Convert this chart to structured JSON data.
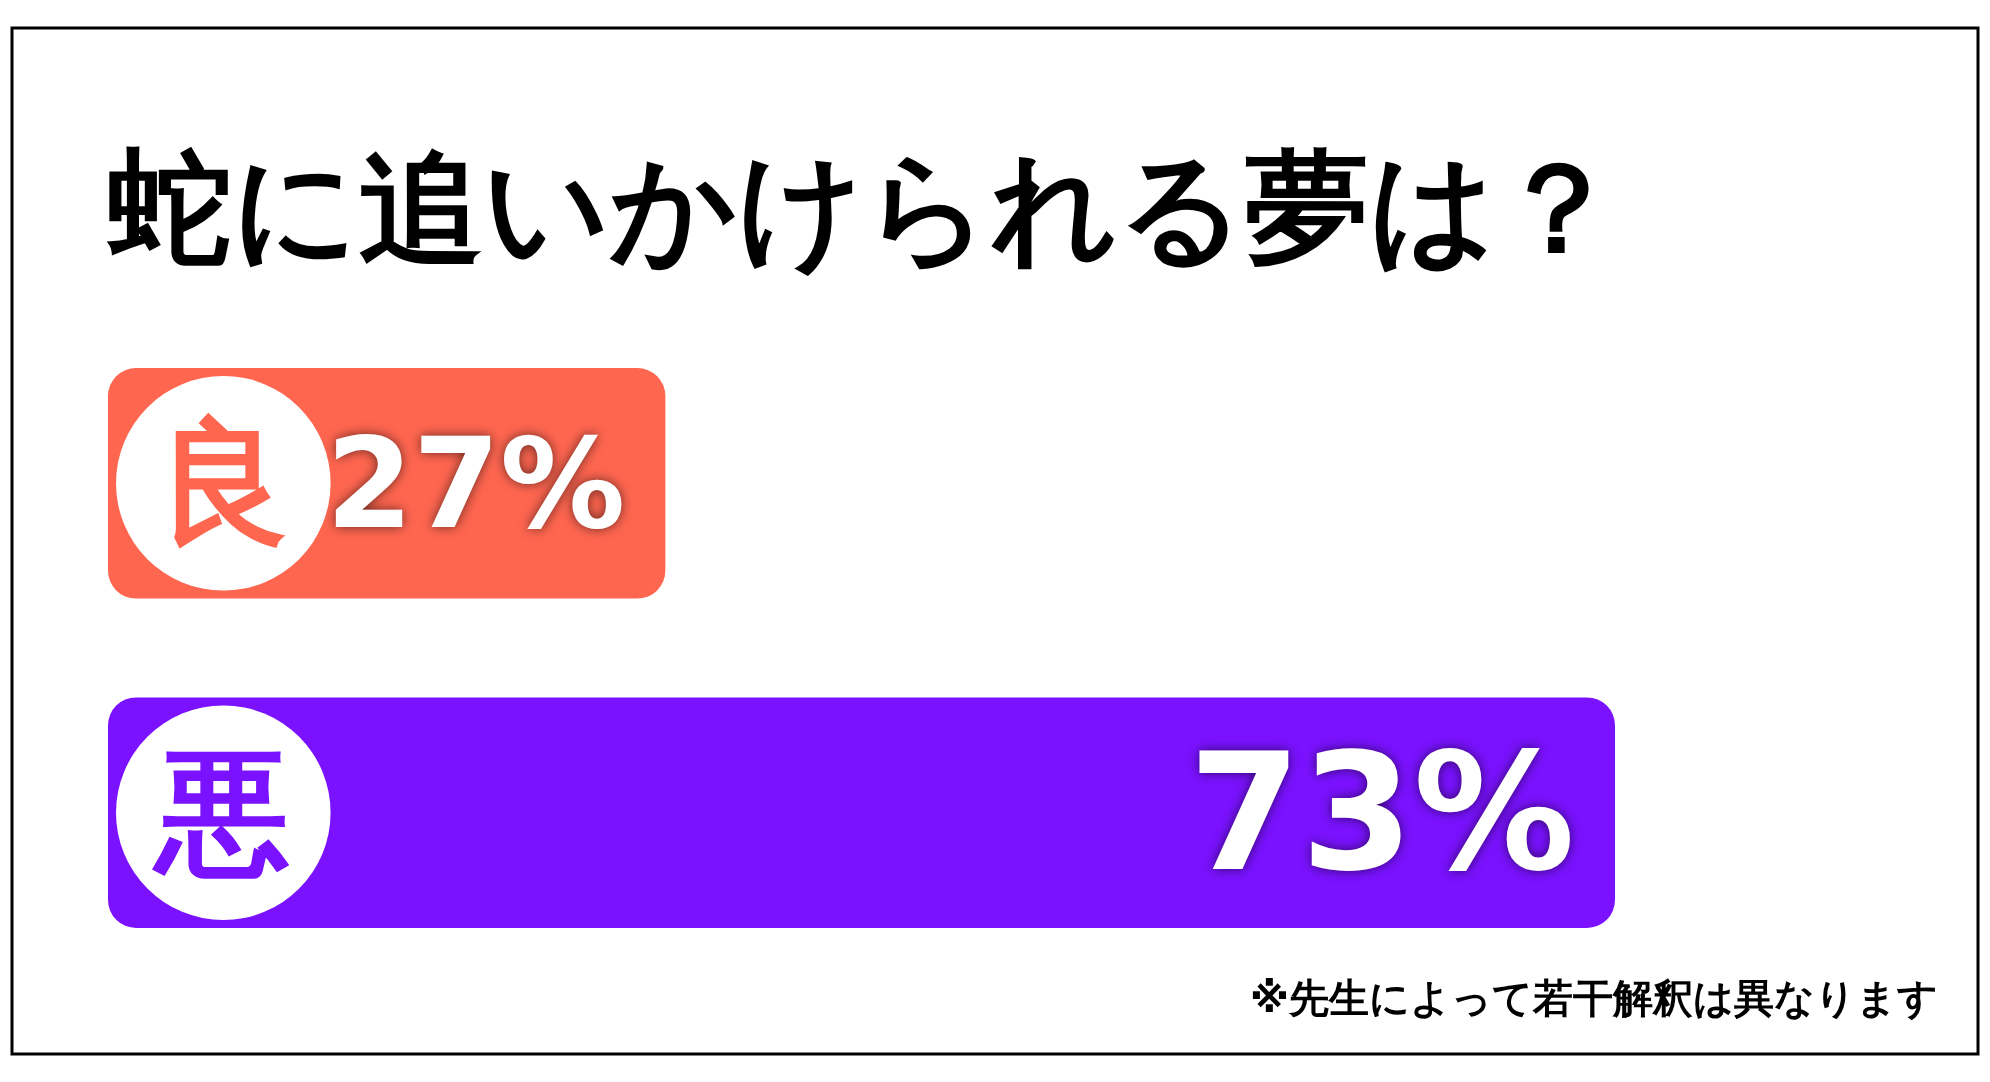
{
  "chart_data": {
    "type": "bar",
    "orientation": "horizontal",
    "title": "蛇に追いかけられる夢は？",
    "categories": [
      "良",
      "悪"
    ],
    "values": [
      27,
      73
    ],
    "colors": [
      "#ff6650",
      "#7a12ff"
    ],
    "value_labels": [
      "27%",
      "73%"
    ],
    "annotations": [
      "※先生によって若干解釈は異なります"
    ]
  }
}
